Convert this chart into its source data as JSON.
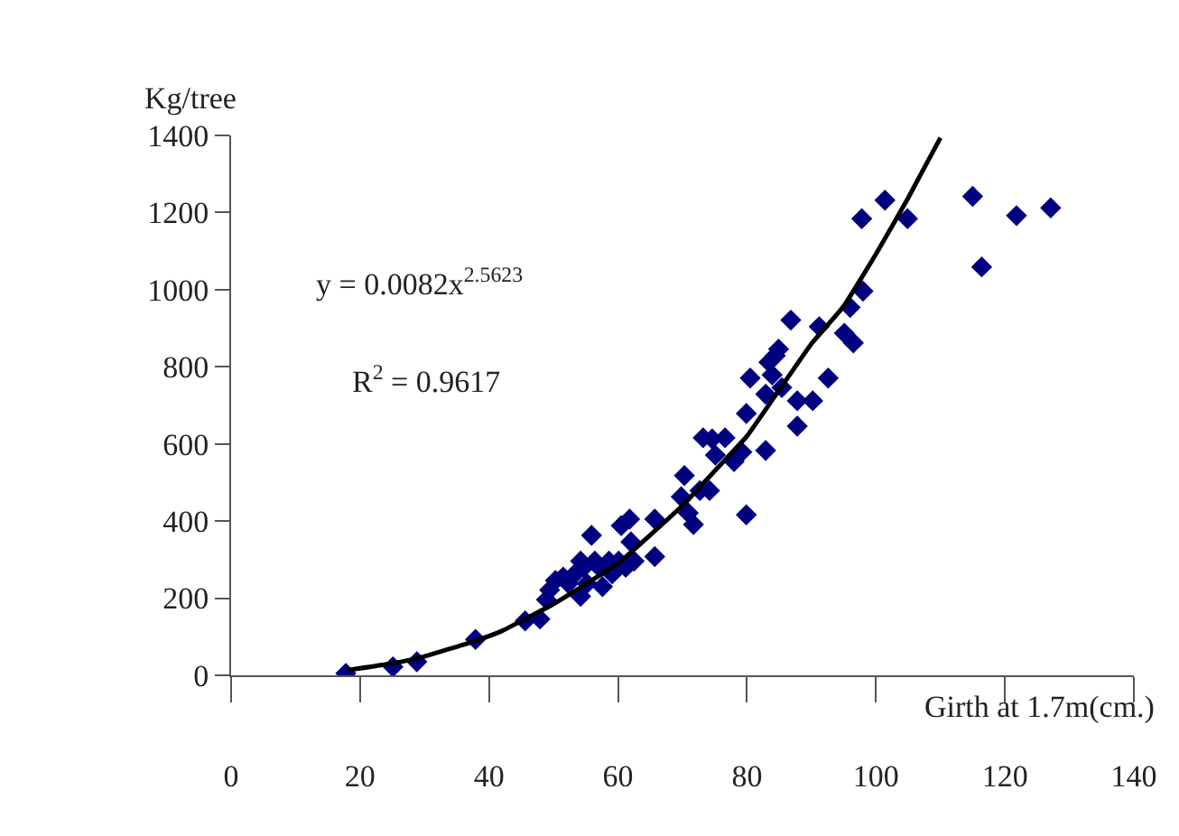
{
  "chart_data": {
    "type": "scatter",
    "xlabel": "Girth at 1.7m(cm.)",
    "ylabel": "Kg/tree",
    "annotations": [
      "y = 0.0082x$^{2.5623}$",
      "R$^{2}$ = 0.9617"
    ],
    "xlim": [
      0,
      140
    ],
    "xticks": [
      0,
      20,
      40,
      60,
      80,
      100,
      120,
      140
    ],
    "ylim": [
      0,
      1400
    ],
    "yticks": [
      0,
      200,
      400,
      600,
      800,
      1000,
      1200,
      1400
    ],
    "marker": "diamond",
    "series": [
      {
        "color": "#000080",
        "x": [
          17.8,
          25.1,
          28.8,
          37.9,
          45.6,
          47.9,
          48.9,
          49.4,
          50.3,
          51.5,
          52.3,
          53.3,
          54.2,
          54.7,
          54.2,
          55.2,
          55.9,
          56.4,
          57.1,
          57.6,
          58.6,
          59.1,
          60.1,
          60.5,
          61.2,
          61.8,
          62.0,
          62.5,
          65.7,
          65.7,
          70.3,
          69.8,
          70.9,
          71.7,
          72.7,
          74.2,
          74.6,
          73.2,
          75.1,
          76.6,
          78.0,
          79.2,
          79.9,
          79.9,
          80.5,
          82.9,
          82.9,
          83.4,
          83.9,
          84.4,
          84.9,
          85.4,
          86.8,
          87.8,
          87.8,
          90.2,
          91.2,
          92.6,
          95.1,
          96.0,
          96.5,
          98.0,
          97.8,
          101.4,
          104.9,
          115.0,
          116.4,
          121.8,
          127.1
        ],
        "values": [
          5,
          22,
          35,
          93,
          141,
          146,
          196,
          221,
          246,
          255,
          238,
          263,
          296,
          280,
          205,
          238,
          363,
          296,
          280,
          230,
          296,
          263,
          296,
          388,
          280,
          405,
          346,
          296,
          405,
          308,
          518,
          463,
          421,
          391,
          479,
          479,
          613,
          616,
          571,
          616,
          554,
          579,
          416,
          679,
          771,
          583,
          729,
          812,
          779,
          829,
          846,
          746,
          921,
          646,
          712,
          712,
          904,
          771,
          887,
          954,
          862,
          996,
          1184,
          1232,
          1184,
          1242,
          1059,
          1192,
          1212
        ]
      },
      {
        "type": "line",
        "color": "#000000",
        "marker": "none",
        "line_style": "solid",
        "x": [
          18,
          25,
          30,
          38,
          42,
          50,
          60,
          70,
          75,
          80,
          85,
          90,
          95,
          100,
          105,
          110
        ],
        "values": [
          13,
          31,
          49,
          90,
          115,
          185,
          290,
          440,
          530,
          620,
          740,
          860,
          957,
          1092,
          1238,
          1394
        ]
      }
    ]
  }
}
